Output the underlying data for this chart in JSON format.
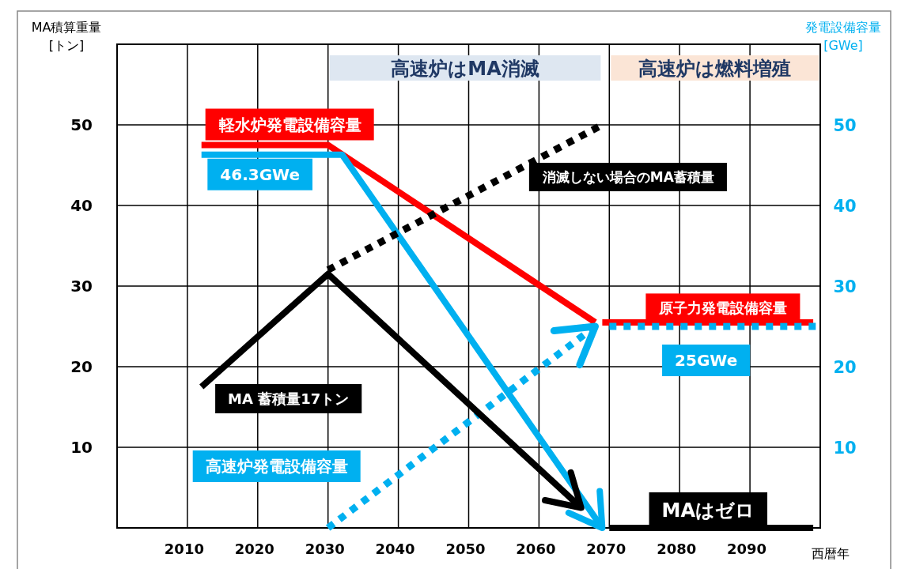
{
  "chart_data": {
    "type": "line",
    "xlabel": "西暦年",
    "ylabel": "MA積算重量\n[トン]",
    "y2label": "発電設備容量\n[GWe]",
    "xlim": [
      2000,
      2100
    ],
    "xticks": [
      2010,
      2020,
      2030,
      2040,
      2050,
      2060,
      2070,
      2080,
      2090
    ],
    "ylim": [
      0,
      60
    ],
    "yticks": [
      10,
      20,
      30,
      40,
      50
    ],
    "y2lim": [
      0,
      60
    ],
    "y2ticks": [
      10,
      20,
      30,
      40,
      50
    ],
    "grid": true,
    "bands": [
      {
        "axis": "x",
        "from": 2030,
        "to": 2069,
        "label": "高速炉はMA消滅",
        "color": "#dee7f1"
      },
      {
        "axis": "x",
        "from": 2070,
        "to": 2100,
        "label": "高速炉は燃料増殖",
        "color": "#fbe5d6"
      }
    ],
    "annotations": [
      {
        "text": "46.3GWe",
        "x": 2012,
        "y": 46.3
      },
      {
        "text": "25GWe",
        "x": 2085,
        "y": 25
      }
    ],
    "series": [
      {
        "name": "軽水炉発電設備容量",
        "color": "#ff0000",
        "x": [
          2012,
          2030,
          2068
        ],
        "values": [
          47.5,
          47.5,
          25.5
        ]
      },
      {
        "color": "#00b0f0",
        "x": [
          2012,
          2032,
          2069
        ],
        "values": [
          46.3,
          46.3,
          0
        ]
      },
      {
        "name": "高速炉発電設備容量",
        "color": "#00b0f0",
        "line_style": "dotted",
        "x": [
          2030,
          2068
        ],
        "values": [
          0,
          25
        ]
      },
      {
        "name": "原子力発電設備容量",
        "color": "#ff0000",
        "x": [
          2069,
          2099
        ],
        "values": [
          25.5,
          25.5
        ]
      },
      {
        "color": "#00b0f0",
        "line_style": "dotted",
        "x": [
          2070,
          2100
        ],
        "values": [
          25,
          25
        ]
      },
      {
        "name": "MA 蓄積量17トン",
        "color": "#000000",
        "x": [
          2012,
          2030,
          2066
        ],
        "values": [
          17.5,
          31.5,
          2.5
        ]
      },
      {
        "name": "消滅しない場合のMA蓄積量",
        "color": "#000000",
        "line_style": "dotted",
        "x": [
          2030,
          2069
        ],
        "values": [
          32,
          50
        ]
      },
      {
        "name": "MAはゼロ",
        "color": "#000000",
        "x": [
          2070,
          2099
        ],
        "values": [
          0,
          0
        ]
      }
    ]
  }
}
